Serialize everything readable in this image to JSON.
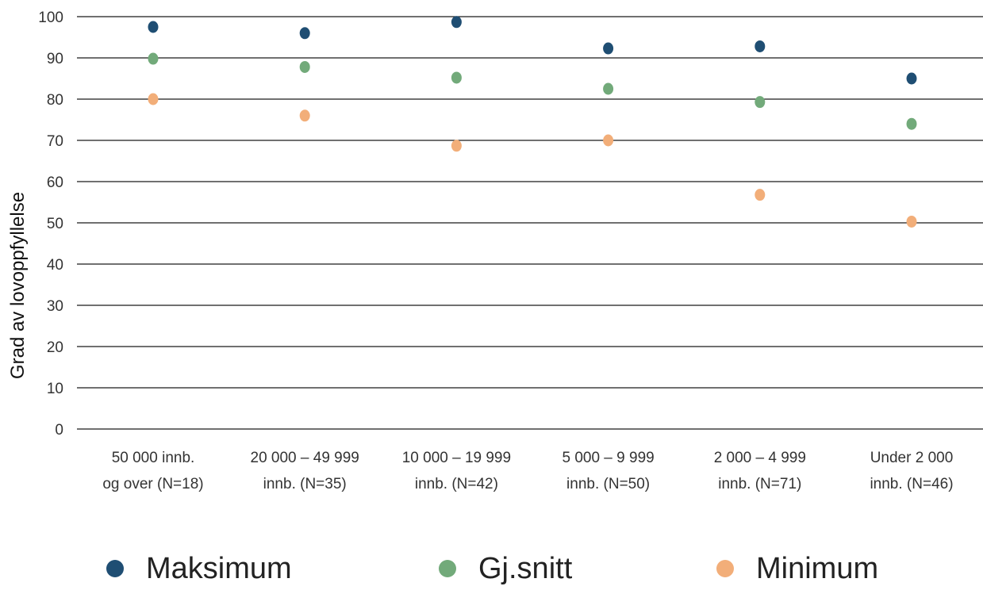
{
  "chart_data": {
    "type": "scatter",
    "ylabel": "Grad av lovoppfyllelse",
    "ylim": [
      0,
      100
    ],
    "yticks": [
      0,
      10,
      20,
      30,
      40,
      50,
      60,
      70,
      80,
      90,
      100
    ],
    "categories": [
      [
        "50 000 innb.",
        "og over (N=18)"
      ],
      [
        "20 000 – 49 999",
        "innb. (N=35)"
      ],
      [
        "10 000 – 19 999",
        "innb. (N=42)"
      ],
      [
        "5 000 – 9 999",
        "innb. (N=50)"
      ],
      [
        "2 000 – 4 999",
        "innb. (N=71)"
      ],
      [
        "Under 2 000",
        "innb. (N=46)"
      ]
    ],
    "series": [
      {
        "name": "Maksimum",
        "color": "#1f4e73",
        "values": [
          97.5,
          96,
          98.7,
          92.3,
          92.8,
          85
        ]
      },
      {
        "name": "Gj.snitt",
        "color": "#72aa7a",
        "values": [
          89.8,
          87.8,
          85.2,
          82.5,
          79.3,
          74
        ]
      },
      {
        "name": "Minimum",
        "color": "#f2ae79",
        "values": [
          80,
          76,
          68.7,
          70,
          56.8,
          50.3
        ]
      }
    ],
    "grid": true,
    "legend_position": "bottom"
  }
}
